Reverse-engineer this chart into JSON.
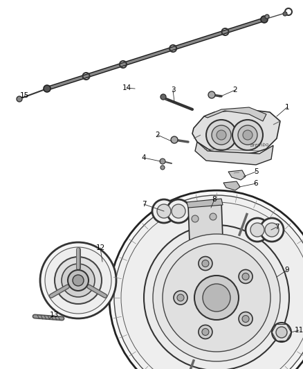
{
  "bg_color": "#ffffff",
  "fig_width": 4.38,
  "fig_height": 5.33,
  "dpi": 100,
  "line_color": "#2a2a2a",
  "label_color": "#000000",
  "label_fontsize": 7.5
}
